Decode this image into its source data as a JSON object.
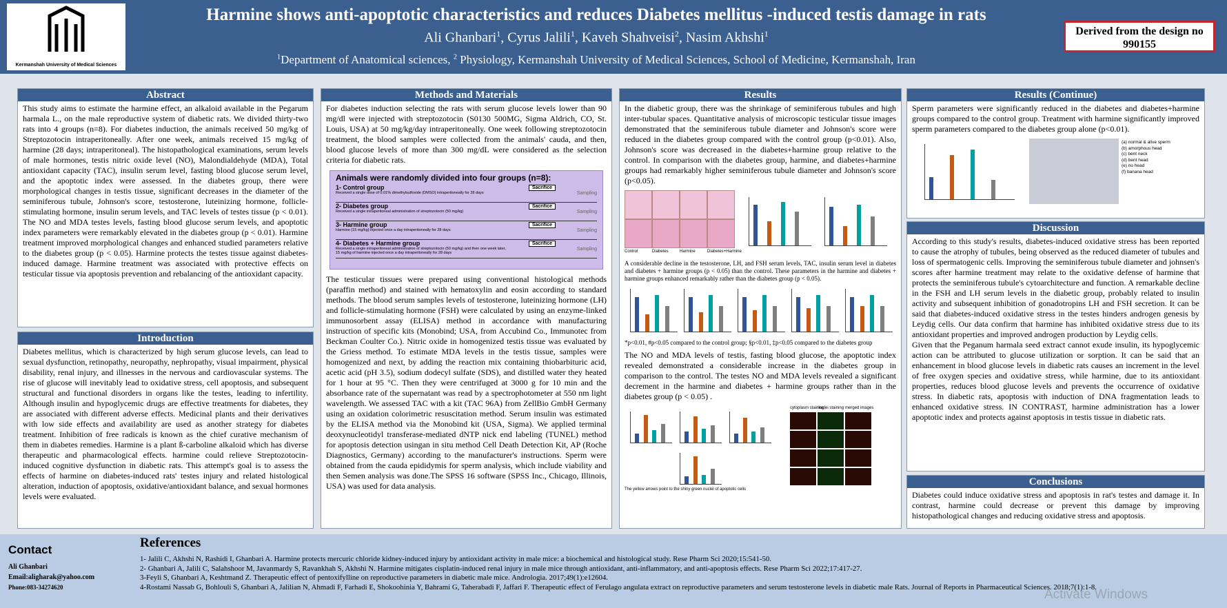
{
  "header": {
    "logo_text": "Kermanshah University of Medical Sciences",
    "title": "Harmine shows anti-apoptotic characteristics and reduces Diabetes mellitus -induced testis damage in rats",
    "authors": [
      {
        "text": "Ali Ghanbari",
        "sup": "1"
      },
      {
        "text": ", Cyrus Jalili",
        "sup": "1"
      },
      {
        "text": ", Kaveh Shahveisi",
        "sup": "2"
      },
      {
        "text": ", Nasim Akhshi",
        "sup": "1"
      }
    ],
    "affiliation": [
      {
        "sup": "1",
        "text": "Department of Anatomical sciences, "
      },
      {
        "sup": "2",
        "text": " Physiology, Kermanshah University of Medical Sciences, School of Medicine, Kermanshah, Iran"
      }
    ],
    "derived": "Derived from the design no 990155"
  },
  "abstract": {
    "heading": "Abstract",
    "text": "This study aims to estimate the harmine effect, an alkaloid available in the Pegarum harmala L., on the male reproductive system of diabetic rats. We divided thirty-two rats into 4 groups (n=8). For diabetes induction, the animals received 50 mg/kg of Streptozotocin intraperitoneally. After one week, animals received 15 mg/kg of harmine (28 days; intraperitoneal). The histopathological examinations, serum levels of male hormones, testis nitric oxide level (NO), Malondialdehyde (MDA), Total antioxidant capacity (TAC), insulin serum level, fasting blood glucose serum level, and the apoptotic index were assessed. In the diabetes group, there were morphological changes in testis tissue, significant decreases in the diameter of the seminiferous tubule, Johnson's score, testosterone, luteinizing hormone, follicle-stimulating hormone, insulin serum levels, and TAC levels of testes tissue (p < 0.01). The NO and MDA testes levels, fasting blood glucose serum levels, and apoptotic index parameters were remarkably elevated in the diabetes group (p < 0.01). Harmine treatment improved morphological changes and enhanced studied parameters relative to the diabetes group (p < 0.05). Harmine protects the testes tissue against diabetes-induced damage. Harmine treatment was associated with protective effects on testicular tissue via apoptosis prevention and rebalancing of the antioxidant capacity."
  },
  "introduction": {
    "heading": "Introduction",
    "text": "Diabetes mellitus, which is characterized by high serum glucose levels, can lead to sexual dysfunction, retinopathy, neuropathy, nephropathy, visual impairment, physical disability, renal injury, and illnesses in the nervous and cardiovascular systems. The rise of glucose will inevitably lead to oxidative stress, cell apoptosis, and subsequent structural and functional disorders in organs like the testes, leading to infertility. Although insulin and hypoglycemic drugs are effective treatments for diabetes, they are associated with different adverse effects. Medicinal plants and their derivatives with low side effects and availability are used as another strategy for diabetes treatment. Inhibition of free radicals is known as the chief curative mechanism of them in diabetes remedies. Harmine is a plant ß-carboline alkaloid which has diverse therapeutic and pharmacological effects. harmine could relieve Streptozotocin-induced cognitive dysfunction in diabetic rats. This attempt's goal is to assess the effects of harmine on diabetes-induced rats' testes injury and related histological alteration, induction of apoptosis, oxidative/antioxidant balance, and sexual hormones levels were evaluated."
  },
  "methods": {
    "heading": "Methods and Materials",
    "text1": "For diabetes induction selecting the rats with serum glucose levels lower than 90 mg/dl were injected with streptozotocin (S0130 500MG, Sigma Aldrich, CO, St. Louis, USA) at 50 mg/kg/day intraperitoneally. One week following streptozotocin treatment, the blood samples were collected from the animals' cauda, and then, blood glucose levels of more than 300 mg/dL were considered as the selection criteria for diabetic rats.",
    "figure": {
      "title": "Animals were randomly divided into four groups (n=8):",
      "groups": [
        {
          "name": "1- Control group",
          "desc": "Received a single dose of 0.01% dimethylsulfoxide (DMSO) intraperitoneally for 28 days",
          "end": "Sacrifice",
          "after": "Sampling"
        },
        {
          "name": "2- Diabetes group",
          "desc": "Received a single intraperitoneal administration of streptozotocin (50 mg/kg)",
          "end": "Sacrifice",
          "after": "Sampling"
        },
        {
          "name": "3- Harmine group",
          "desc": "Harmine (15 mg/kg) injected once a day intraperitoneally for 28 days",
          "end": "Sacrifice",
          "after": "Sampling"
        },
        {
          "name": "4- Diabetes + Harmine group",
          "desc": "Received a single intraperitoneal administration of streptozotocin (50 mg/kg) and then one week later, 15 mg/kg of harmine injected once a day intraperitoneally for 28 days",
          "end": "Sacrifice",
          "after": "Sampling"
        }
      ]
    },
    "text2": "The testicular tissues were prepared using conventional histological methods (paraffin method) and stained with hematoxylin and eosin according to standard methods. The blood serum samples levels of testosterone, luteinizing hormone (LH) and follicle-stimulating hormone (FSH) were calculated by using an enzyme-linked immunosorbent assay (ELISA) method in accordance with manufacturing instruction of specific kits (Monobind; USA, from Accubind Co., Immunotec from Beckman Coulter Co.). Nitric oxide in homogenized testis tissue was evaluated by the Griess method. To estimate MDA levels in the testis tissue, samples were homogenized and next, by adding the reaction mix containing thiobarbituric acid, acetic acid (pH 3.5), sodium dodecyl sulfate (SDS), and distilled water they heated for 1 hour at 95 °C. Then they were centrifuged at 3000 g for 10 min and the absorbance rate of the supernatant was read by a spectrophotometer at 550 nm light wavelength. We assessed TAC with a kit (TAC 96A) from ZellBio GmbH Germany using an oxidation colorimetric resuscitation method. Serum insulin was estimated by the ELISA method via the Monobind kit (USA, Sigma). We applied terminal deoxynucleotidyl transferase-mediated dNTP nick end labeling (TUNEL) method for apoptosis detection usingan in situ method Cell Death Detection Kit, AP (Roche Diagnostics, Germany) according to the manufacturer's instructions. Sperm were obtained from the cauda epididymis for sperm analysis, which include viability and then Semen analysis was done.The SPSS 16 software (SPSS Inc., Chicago, Illinois, USA) was used for data analysis."
  },
  "results": {
    "heading": "Results",
    "text1": "In the diabetic group, there was the shrinkage of seminiferous tubules and high inter-tubular spaces. Quantitative analysis of microscopic testicular tissue images demonstrated that the seminiferous tubule diameter and Johnson's score were reduced in the diabetes group compared with the control group (p<0.01). Also, Johnson's score was decreased in the diabetes+harmine group relative to the control. In comparison with the diabetes group, harmine, and diabetes+harmine groups had remarkably higher seminiferous tubule diameter and Johnson's score (p<0.05).",
    "figure1_labels": [
      "Control",
      "Diabetes",
      "Harmine",
      "Diabetes+Harmine"
    ],
    "caption1": "A considerable decline in the testosterone, LH, and FSH serum levels, TAC, insulin serum level in diabetes and diabetes + harmine groups (p < 0.05) than the control. These parameters in the harmine and diabetes + harmine groups enhanced remarkably rather than the diabetes group (p < 0.05).",
    "caption2": "*p<0.01, #p<0.05 compared to the control group; §p<0.01, ‡p<0.05 compared to the diabetes group",
    "text2": "The NO and MDA levels of testis, fasting blood glucose, the apoptotic index revealed demonstrated a considerable increase in the diabetes group in comparison to the control. The testes NO and MDA levels revealed a significant decrement in the harmine and diabetes + harmine groups rather than in the diabetes group (p < 0.05) .",
    "figure3_labels": [
      "cytoplasm staining",
      "nuclei staining",
      "merged images"
    ],
    "caption3": "The yellow arrows point to the shiny green nuclei of apoptotic cells"
  },
  "results_continue": {
    "heading": "Results (Continue)",
    "text": "Sperm parameters were significantly reduced in the diabetes and diabetes+harmine groups compared to the control group. Treatment with harmine significantly improved sperm parameters compared to the diabetes group alone (p<0.01).",
    "legend": [
      "(a) normal & alive sperm",
      "(b) amorphous head",
      "(c) bent neck",
      "(d) bent head",
      "(e) no head",
      "(f) banana head"
    ]
  },
  "discussion": {
    "heading": "Discussion",
    "paragraphs": [
      "According to this study's results, diabetes-induced oxidative stress has been reported to cause the atrophy of tubules, being observed as the reduced diameter of tubules and loss of spermatogenic cells. Improving the seminiferous tubule diameter and johnsen's scores after harmine treatment may relate to the oxidative defense of harmine that protects the seminiferous tubule's cytoarchitecture and function. A remarkable decline in the FSH and LH serum levels in the diabetic group, probably related to insulin activity and subsequent inhibition of gonadotropins LH and FSH secretion. It can be said that diabetes-induced oxidative stress in the testes hinders androgen genesis by Leydig cells. Our data confirm that harmine has inhibited oxidative stress due to its antioxidant properties and improved androgen production by Leydig cells.",
      "Given that the Peganum harmala seed extract cannot exude insulin, its hypoglycemic action can be attributed to glucose utilization or sorption. It can be said that an enhancement in blood glucose levels in diabetic rats causes an increment in the level of free oxygen species and oxidative stress, while harmine, due to its antioxidant properties, reduces blood glucose levels and prevents the occurrence of oxidative stress. In diabetic rats, apoptosis with induction of DNA fragmentation leads to enhanced oxidative stress. IN CONTRAST, harmine administration has a lower apoptotic index and protects against apoptosis in testis tissue in diabetic rats."
    ]
  },
  "conclusions": {
    "heading": "Conclusions",
    "text": "Diabetes could induce oxidative stress and apoptosis in rat's testes and damage it. In contrast, harmine could decrease or prevent this damage by improving histopathological changes and reducing oxidative stress and apoptosis."
  },
  "contact": {
    "heading": "Contact",
    "name": "Ali Ghanbari",
    "email": "Email:aligharak@yahoo.com",
    "phone": "Phone:083-34274620"
  },
  "references": {
    "heading": "References",
    "items": [
      "1- Jalili C, Akhshi N, Rashidi I, Ghanbari A. Harmine protects mercuric chloride kidney-induced injury by antioxidant activity in male mice: a biochemical and histological study. Rese Pharm Sci 2020;15:541-50.",
      "2- Ghanbari A, Jalili C, Salahshoor M, Javanmardy S, Ravankhah S, Akhshi N. Harmine mitigates cisplatin-induced renal injury in male mice through antioxidant, anti-inflammatory, and anti-apoptosis effects. Rese Pharm Sci 2022;17:417-27.",
      "3-Feyli S, Ghanbari A, Keshtmand Z. Therapeutic effect of pentoxifylline on reproductive parameters in diabetic male mice. Andrologia. 2017;49(1):e12604.",
      "4-Rostami Nassab G, Bohlouli S, Ghanbari A, Jalilian N, Ahmadi F, Farhadi E, Shokoohinia Y, Bahrami G, Taherabadi F, Jaffari F. Therapeutic effect of Ferulago angulata extract on reproductive parameters and serum testosterone levels in diabetic male Rats. Journal of Reports in Pharmaceutical Sciences. 2018;7(1):1-8."
    ]
  },
  "watermark": "Activate Windows"
}
